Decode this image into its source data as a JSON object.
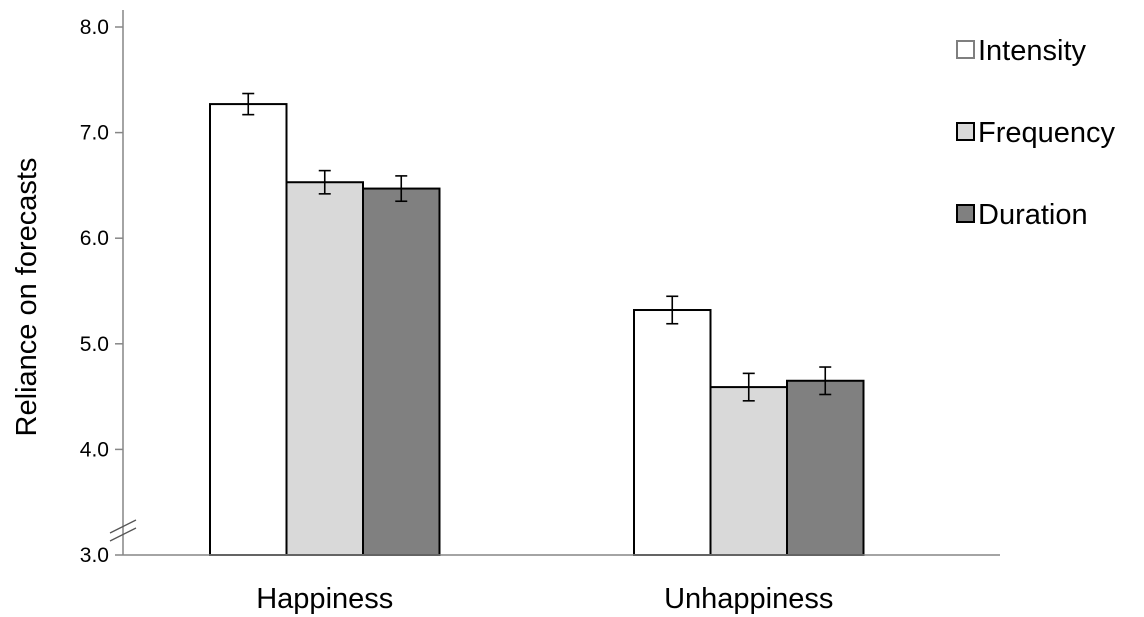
{
  "chart_data": {
    "type": "bar",
    "title": "",
    "xlabel": "",
    "ylabel": "Reliance on forecasts",
    "ylim": [
      3.0,
      8.0
    ],
    "yticks": [
      "3.0",
      "4.0",
      "5.0",
      "6.0",
      "7.0",
      "8.0"
    ],
    "axis_break": true,
    "grid": false,
    "legend_position": "top-right",
    "categories": [
      "Happiness",
      "Unhappiness"
    ],
    "series": [
      {
        "name": "Intensity",
        "color": "#ffffff",
        "values": [
          7.27,
          5.32
        ],
        "errors": [
          0.1,
          0.13
        ]
      },
      {
        "name": "Frequency",
        "color": "#d9d9d9",
        "values": [
          6.53,
          4.59
        ],
        "errors": [
          0.11,
          0.13
        ]
      },
      {
        "name": "Duration",
        "color": "#808080",
        "values": [
          6.47,
          4.65
        ],
        "errors": [
          0.12,
          0.13
        ]
      }
    ]
  }
}
